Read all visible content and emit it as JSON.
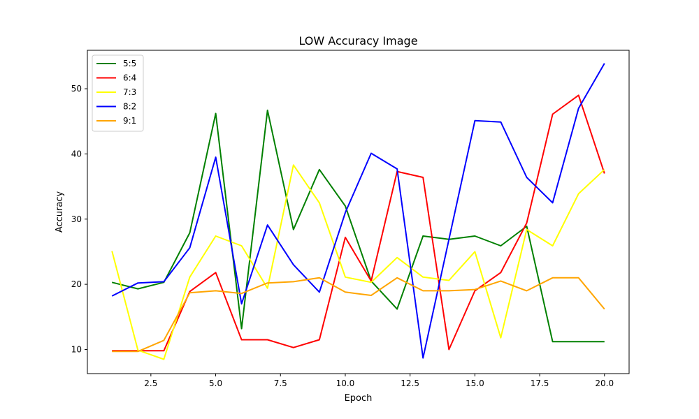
{
  "chart_data": {
    "type": "line",
    "title": "LOW Accuracy Image",
    "xlabel": "Epoch",
    "ylabel": "Accuracy",
    "xlim": [
      0.05,
      20.95
    ],
    "ylim": [
      6.3,
      55.9
    ],
    "xticks": [
      2.5,
      5.0,
      7.5,
      10.0,
      12.5,
      15.0,
      17.5,
      20.0
    ],
    "xtick_labels": [
      "2.5",
      "5.0",
      "7.5",
      "10.0",
      "12.5",
      "15.0",
      "17.5",
      "20.0"
    ],
    "yticks": [
      10,
      20,
      30,
      40,
      50
    ],
    "ytick_labels": [
      "10",
      "20",
      "30",
      "40",
      "50"
    ],
    "grid": false,
    "legend_position": "top-left",
    "x": [
      1,
      2,
      3,
      4,
      5,
      6,
      7,
      8,
      9,
      10,
      11,
      12,
      13,
      14,
      15,
      16,
      17,
      18,
      19,
      20
    ],
    "series": [
      {
        "name": "5:5",
        "color": "#008000",
        "values": [
          20.3,
          19.3,
          20.3,
          27.9,
          46.2,
          13.2,
          46.7,
          28.4,
          37.6,
          32.0,
          20.5,
          16.2,
          27.4,
          26.9,
          27.4,
          25.9,
          28.9,
          11.2,
          11.2,
          11.2
        ]
      },
      {
        "name": "6:4",
        "color": "#ff0000",
        "values": [
          9.8,
          9.8,
          9.8,
          18.9,
          21.8,
          11.5,
          11.5,
          10.3,
          11.5,
          27.2,
          20.5,
          37.3,
          36.4,
          10.0,
          19.0,
          21.8,
          29.4,
          46.1,
          49.0,
          37.0
        ]
      },
      {
        "name": "7:3",
        "color": "#ffff00",
        "values": [
          25.1,
          9.9,
          8.5,
          21.1,
          27.4,
          25.9,
          19.4,
          38.3,
          32.5,
          21.1,
          20.3,
          24.1,
          21.1,
          20.6,
          25.0,
          11.8,
          28.4,
          25.9,
          33.9,
          37.6
        ]
      },
      {
        "name": "8:2",
        "color": "#0000ff",
        "values": [
          18.2,
          20.2,
          20.4,
          25.6,
          39.5,
          17.0,
          29.1,
          23.0,
          18.8,
          31.0,
          40.1,
          37.7,
          8.7,
          26.9,
          45.1,
          44.9,
          36.4,
          32.5,
          47.0,
          53.9
        ]
      },
      {
        "name": "9:1",
        "color": "#ffa500",
        "values": [
          9.7,
          9.7,
          11.4,
          18.7,
          19.0,
          18.6,
          20.2,
          20.4,
          21.0,
          18.8,
          18.3,
          21.0,
          19.0,
          19.0,
          19.2,
          20.5,
          19.0,
          21.0,
          21.0,
          16.2
        ]
      }
    ]
  }
}
